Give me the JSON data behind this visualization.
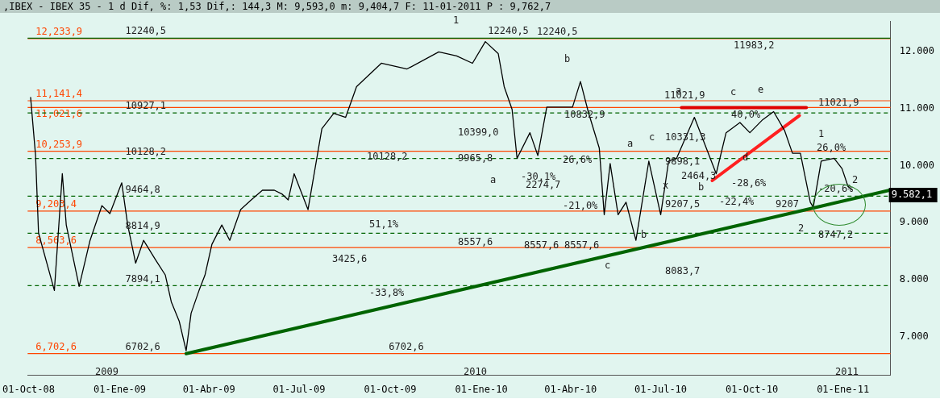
{
  "chart_data": {
    "type": "line",
    "title": ",IBEX - IBEX 35 -  1 d Dif, %: 1,53 Dif,: 144,3 M: 9,593,0 m: 9,404,7 F: 11-01-2011 P : 9,762,7",
    "xlim": [
      "2008-09-30",
      "2011-02-18"
    ],
    "ylim": [
      6320,
      12540
    ],
    "xticks": [
      {
        "value": "2008-10-01",
        "label": "01-Oct-08"
      },
      {
        "value": "2009-01-01",
        "label": "01-Ene-09"
      },
      {
        "value": "2009-04-01",
        "label": "01-Abr-09"
      },
      {
        "value": "2009-07-01",
        "label": "01-Jul-09"
      },
      {
        "value": "2009-10-01",
        "label": "01-Oct-09"
      },
      {
        "value": "2010-01-01",
        "label": "01-Ene-10"
      },
      {
        "value": "2010-04-01",
        "label": "01-Abr-10"
      },
      {
        "value": "2010-07-01",
        "label": "01-Jul-10"
      },
      {
        "value": "2010-10-01",
        "label": "01-Oct-10"
      },
      {
        "value": "2011-01-01",
        "label": "01-Ene-11"
      }
    ],
    "yticks": [
      {
        "value": 7000,
        "label": "7.000"
      },
      {
        "value": 8000,
        "label": "8.000"
      },
      {
        "value": 9000,
        "label": "9.000"
      },
      {
        "value": 10000,
        "label": "10.000"
      },
      {
        "value": 11000,
        "label": "11.000"
      },
      {
        "value": 12000,
        "label": "12.000"
      }
    ],
    "grid": false,
    "legend": false,
    "marker": "none",
    "series": [
      {
        "color": "#000000",
        "x": [
          "2008-10-03",
          "2008-10-08",
          "2008-10-11",
          "2008-10-27",
          "2008-11-04",
          "2008-11-08",
          "2008-11-21",
          "2008-12-02",
          "2008-12-14",
          "2008-12-22",
          "2009-01-03",
          "2009-01-09",
          "2009-01-17",
          "2009-01-25",
          "2009-02-06",
          "2009-02-16",
          "2009-02-22",
          "2009-03-02",
          "2009-03-09",
          "2009-03-14",
          "2009-03-22",
          "2009-03-28",
          "2009-04-04",
          "2009-04-14",
          "2009-04-22",
          "2009-05-03",
          "2009-05-13",
          "2009-05-25",
          "2009-06-06",
          "2009-06-14",
          "2009-06-20",
          "2009-06-26",
          "2009-07-10",
          "2009-07-24",
          "2009-08-05",
          "2009-08-17",
          "2009-08-28",
          "2009-09-22",
          "2009-10-18",
          "2009-11-19",
          "2009-12-07",
          "2009-12-23",
          "2010-01-05",
          "2010-01-18",
          "2010-01-24",
          "2010-02-01",
          "2010-02-06",
          "2010-02-19",
          "2010-02-27",
          "2010-03-08",
          "2010-03-24",
          "2010-04-03",
          "2010-04-11",
          "2010-04-19",
          "2010-04-30",
          "2010-05-05",
          "2010-05-11",
          "2010-05-19",
          "2010-05-27",
          "2010-06-06",
          "2010-06-19",
          "2010-07-01",
          "2010-07-09",
          "2010-07-17",
          "2010-08-04",
          "2010-08-18",
          "2010-08-26",
          "2010-09-05",
          "2010-09-19",
          "2010-09-29",
          "2010-10-12",
          "2010-10-23",
          "2010-11-03",
          "2010-11-11",
          "2010-11-19",
          "2010-11-29",
          "2010-12-02",
          "2010-12-10",
          "2010-12-23",
          "2010-12-31",
          "2011-01-06",
          "2011-01-10"
        ],
        "values": [
          11200,
          10180,
          8820,
          7810,
          9860,
          8960,
          7880,
          8690,
          9300,
          9160,
          9700,
          8960,
          8290,
          8690,
          8350,
          8080,
          7610,
          7270,
          6750,
          7410,
          7810,
          8080,
          8620,
          8960,
          8690,
          9230,
          9390,
          9570,
          9570,
          9500,
          9400,
          9860,
          9230,
          10650,
          10920,
          10850,
          11390,
          11800,
          11700,
          12000,
          11930,
          11800,
          12180,
          11970,
          11390,
          10990,
          10130,
          10580,
          10180,
          11030,
          11030,
          11030,
          11480,
          10940,
          10310,
          9140,
          10040,
          9140,
          9360,
          8690,
          10080,
          9140,
          10080,
          10130,
          10850,
          10220,
          9860,
          10580,
          10760,
          10580,
          10810,
          10950,
          10620,
          10220,
          10220,
          9360,
          9270,
          10080,
          10130,
          9950,
          9640,
          9582
        ]
      },
      {
        "color": "#006400",
        "x": [
          "2009-03-09",
          "2011-02-17"
        ],
        "values": [
          6700,
          9570
        ]
      },
      {
        "color": "#ff2020",
        "x": [
          "2010-08-22",
          "2010-11-18"
        ],
        "values": [
          9740,
          10880
        ]
      },
      {
        "color": "#e00000",
        "x": [
          "2010-07-22",
          "2010-11-25"
        ],
        "values": [
          11020,
          11020
        ]
      }
    ],
    "ref_lines": [
      {
        "axis": "y",
        "value": 12233.9,
        "label": "12,233,9",
        "color": "#ff4500",
        "line_style": "solid"
      },
      {
        "axis": "y",
        "value": 12240.5,
        "color": "#006400",
        "line_style": "solid"
      },
      {
        "axis": "y",
        "value": 11141.4,
        "label": "11,141,4",
        "color": "#ff4500",
        "line_style": "solid"
      },
      {
        "axis": "y",
        "value": 11021.6,
        "label": "11,021,6",
        "color": "#ff4500",
        "line_style": "solid"
      },
      {
        "axis": "y",
        "value": 10253.9,
        "label": "10,253,9",
        "color": "#ff4500",
        "line_style": "solid"
      },
      {
        "axis": "y",
        "value": 9203.4,
        "label": "9,203,4",
        "color": "#ff4500",
        "line_style": "solid"
      },
      {
        "axis": "y",
        "value": 8563.6,
        "label": "8,563,6",
        "color": "#ff4500",
        "line_style": "solid"
      },
      {
        "axis": "y",
        "value": 6702.6,
        "label": "6,702,6",
        "color": "#ff4500",
        "line_style": "solid"
      },
      {
        "axis": "y",
        "value": 10927.1,
        "color": "#006400",
        "line_style": "dashed"
      },
      {
        "axis": "y",
        "value": 10128.2,
        "color": "#006400",
        "line_style": "dashed"
      },
      {
        "axis": "y",
        "value": 9464.8,
        "color": "#006400",
        "line_style": "dashed"
      },
      {
        "axis": "y",
        "value": 8814.9,
        "color": "#006400",
        "line_style": "dashed"
      },
      {
        "axis": "y",
        "value": 7894.1,
        "color": "#006400",
        "line_style": "dashed"
      }
    ],
    "annotations": [
      "2009",
      "2010",
      "2011",
      {
        "text": "12240,5",
        "x": "2009-01-05",
        "y": 12240.5
      },
      {
        "text": "10927,1",
        "x": "2009-01-05",
        "y": 10927.1
      },
      {
        "text": "10128,2",
        "x": "2009-01-05",
        "y": 10128.2
      },
      {
        "text": "9464,8",
        "x": "2009-01-05",
        "y": 9464.8
      },
      {
        "text": "8814,9",
        "x": "2009-01-05",
        "y": 8814.9
      },
      {
        "text": "7894,1",
        "x": "2009-01-05",
        "y": 7894.1
      },
      {
        "text": "6702,6",
        "x": "2009-01-05",
        "y": 6702.6
      },
      "1",
      {
        "text": "12240,5",
        "x": "2010-01-06",
        "y": 12240.5
      },
      "12240,5",
      "10128,2",
      {
        "text": "6702,6",
        "x": "2009-09-28",
        "y": 6702.6
      },
      "51,1%",
      "3425,6",
      "-33,8%",
      "10399,0",
      "9965,8",
      "8557,6",
      "8557,6",
      "8557,6",
      "10832,9",
      "-30,1%",
      "2274,7",
      "26,6%",
      "-21,0%",
      "a",
      "b",
      "c",
      "a",
      "b",
      "c",
      "x",
      "a",
      "b",
      "c",
      "d",
      "e",
      "11021,9",
      "11983,2",
      "40,0%",
      "10331,3",
      "9898,1",
      "2464,3",
      "-28,6%",
      "-22,4%",
      "9207,5",
      "9207",
      "8083,7",
      "11021,9",
      "1",
      "26,0%",
      "2",
      "-20,6%",
      "2",
      "8747,2",
      "9.582,1"
    ]
  }
}
